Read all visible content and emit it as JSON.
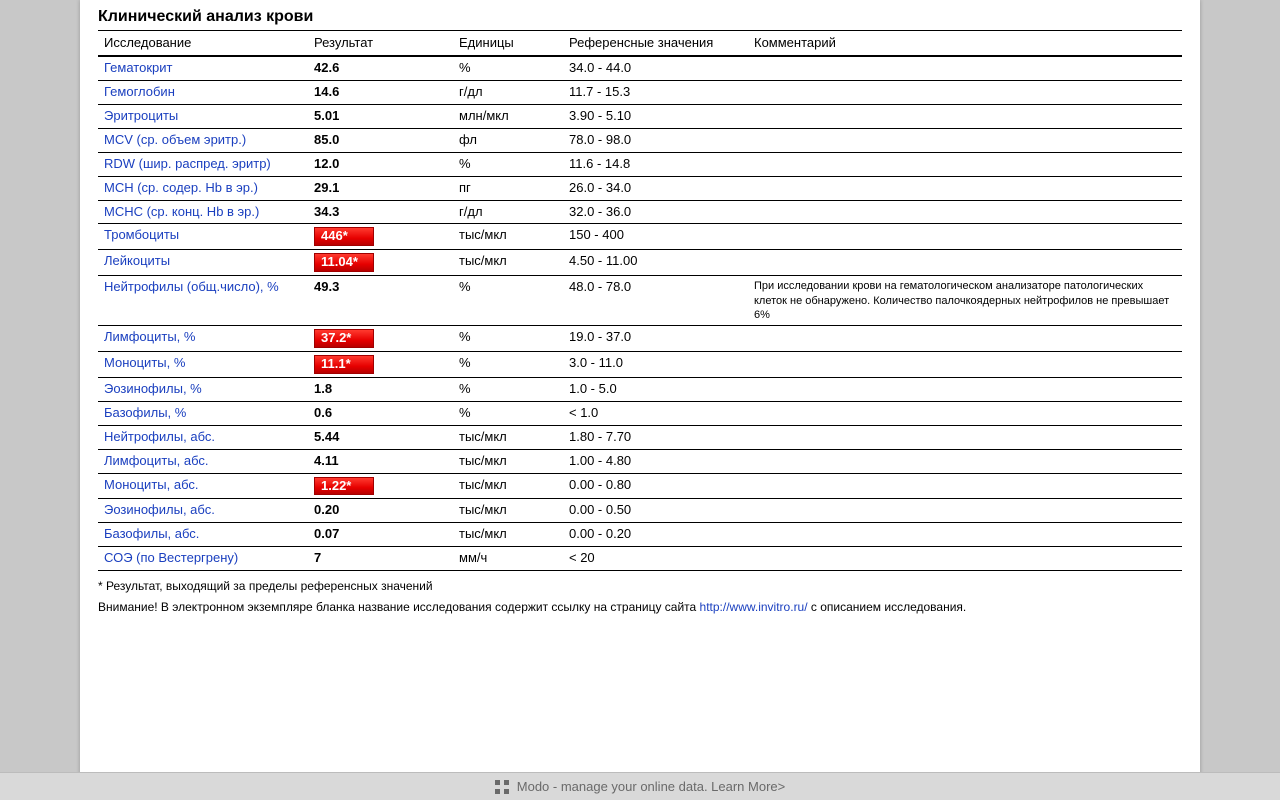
{
  "title": "Клинический анализ крови",
  "columns": {
    "test": "Исследование",
    "result": "Результат",
    "units": "Единицы",
    "reference": "Референсные значения",
    "comment": "Комментарий"
  },
  "rows": [
    {
      "test": "Гематокрит",
      "result": "42.6",
      "flag": false,
      "units": "%",
      "reference": "34.0 - 44.0",
      "comment": ""
    },
    {
      "test": "Гемоглобин",
      "result": "14.6",
      "flag": false,
      "units": "г/дл",
      "reference": "11.7 - 15.3",
      "comment": ""
    },
    {
      "test": "Эритроциты",
      "result": "5.01",
      "flag": false,
      "units": "млн/мкл",
      "reference": "3.90 - 5.10",
      "comment": ""
    },
    {
      "test": "MCV (ср. объем эритр.)",
      "result": "85.0",
      "flag": false,
      "units": "фл",
      "reference": "78.0 - 98.0",
      "comment": ""
    },
    {
      "test": "RDW (шир. распред. эритр)",
      "result": "12.0",
      "flag": false,
      "units": "%",
      "reference": "11.6 - 14.8",
      "comment": ""
    },
    {
      "test": "MCH (ср. содер. Hb в эр.)",
      "result": "29.1",
      "flag": false,
      "units": "пг",
      "reference": "26.0 - 34.0",
      "comment": ""
    },
    {
      "test": "MCHC (ср. конц. Hb в эр.)",
      "result": "34.3",
      "flag": false,
      "units": "г/дл",
      "reference": "32.0 - 36.0",
      "comment": ""
    },
    {
      "test": "Тромбоциты",
      "result": "446*",
      "flag": true,
      "units": "тыс/мкл",
      "reference": "150 - 400",
      "comment": ""
    },
    {
      "test": "Лейкоциты",
      "result": "11.04*",
      "flag": true,
      "units": "тыс/мкл",
      "reference": "4.50 - 11.00",
      "comment": ""
    },
    {
      "test": "Нейтрофилы (общ.число), %",
      "result": "49.3",
      "flag": false,
      "units": "%",
      "reference": "48.0 - 78.0",
      "comment": "При исследовании крови на гематологическом анализаторе патологических клеток не обнаружено. Количество палочкоядерных нейтрофилов не превышает 6%"
    },
    {
      "test": "Лимфоциты, %",
      "result": "37.2*",
      "flag": true,
      "units": "%",
      "reference": "19.0 - 37.0",
      "comment": ""
    },
    {
      "test": "Моноциты, %",
      "result": "11.1*",
      "flag": true,
      "units": "%",
      "reference": "3.0 - 11.0",
      "comment": ""
    },
    {
      "test": "Эозинофилы, %",
      "result": "1.8",
      "flag": false,
      "units": "%",
      "reference": "1.0 - 5.0",
      "comment": ""
    },
    {
      "test": "Базофилы, %",
      "result": "0.6",
      "flag": false,
      "units": "%",
      "reference": "< 1.0",
      "comment": ""
    },
    {
      "test": "Нейтрофилы, абс.",
      "result": "5.44",
      "flag": false,
      "units": "тыс/мкл",
      "reference": "1.80 - 7.70",
      "comment": ""
    },
    {
      "test": "Лимфоциты, абс.",
      "result": "4.11",
      "flag": false,
      "units": "тыс/мкл",
      "reference": "1.00 - 4.80",
      "comment": ""
    },
    {
      "test": "Моноциты, абс.",
      "result": "1.22*",
      "flag": true,
      "units": "тыс/мкл",
      "reference": "0.00 - 0.80",
      "comment": ""
    },
    {
      "test": "Эозинофилы, абс.",
      "result": "0.20",
      "flag": false,
      "units": "тыс/мкл",
      "reference": "0.00 - 0.50",
      "comment": ""
    },
    {
      "test": "Базофилы, абс.",
      "result": "0.07",
      "flag": false,
      "units": "тыс/мкл",
      "reference": "0.00 - 0.20",
      "comment": ""
    },
    {
      "test": "СОЭ (по Вестергрену)",
      "result": "7",
      "flag": false,
      "units": "мм/ч",
      "reference": "< 20",
      "comment": ""
    }
  ],
  "footnote": "* Результат, выходящий за пределы референсных значений",
  "notice_prefix": "Внимание! В электронном экземпляре бланка название исследования содержит ссылку на страницу сайта ",
  "notice_link_text": "http://www.invitro.ru/",
  "notice_suffix": " с описанием исследования.",
  "bottombar_text": "Modo - manage your online data. Learn More>",
  "colors": {
    "page_bg": "#c8c8c8",
    "sheet_bg": "#ffffff",
    "link": "#1a3fbf",
    "flag_bg_top": "#ff3a2f",
    "flag_bg_bottom": "#b80000",
    "flag_text": "#ffffff",
    "rule": "#000000",
    "bottombar_bg": "#d9d9d9",
    "bottombar_text": "#6a6a6a"
  }
}
